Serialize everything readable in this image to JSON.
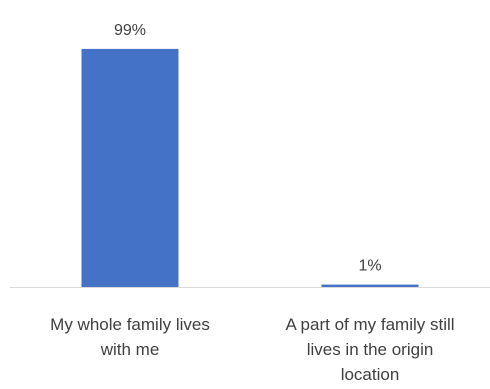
{
  "chart_data": {
    "type": "bar",
    "categories": [
      [
        "My whole family lives",
        "with me"
      ],
      [
        "A part of my family still",
        "lives in the origin",
        "location"
      ]
    ],
    "values": [
      99,
      1
    ],
    "data_labels": [
      "99%",
      "1%"
    ],
    "ylim": [
      0,
      100
    ],
    "grid": false,
    "legend": "none",
    "bar_color": "#4472C4",
    "axis_color": "#D9D9D9",
    "text_color": "#404040"
  }
}
